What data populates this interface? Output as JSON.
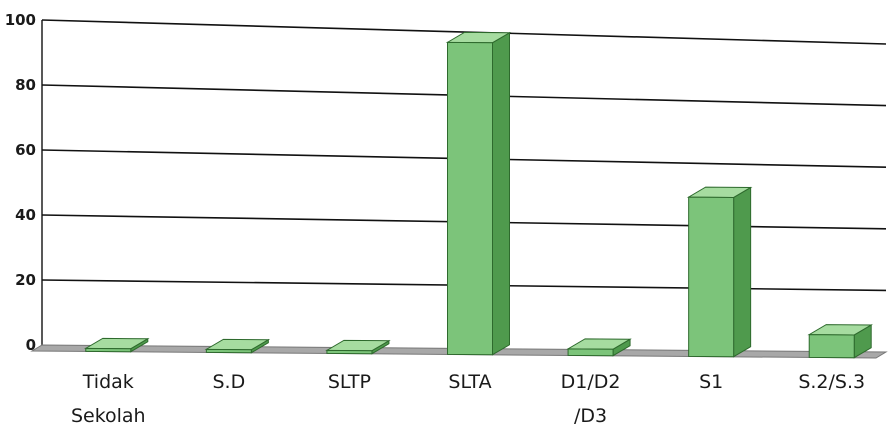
{
  "chart_data": {
    "type": "bar",
    "title": "",
    "xlabel": "",
    "ylabel": "",
    "ylim": [
      0,
      100
    ],
    "yticks": [
      "0",
      "20",
      "40",
      "60",
      "80",
      "100"
    ],
    "grid": true,
    "three_d": true,
    "categories": [
      [
        "Tidak",
        "Sekolah"
      ],
      [
        "S.D"
      ],
      [
        "SLTP"
      ],
      [
        "SLTA"
      ],
      [
        "D1/D2",
        "/D3"
      ],
      [
        "S1"
      ],
      [
        "S.2/S.3"
      ]
    ],
    "values": [
      0,
      0,
      0,
      96,
      2,
      49,
      7
    ],
    "colors": {
      "bar_front": "#7cc47a",
      "bar_side": "#4f9a4d",
      "bar_top": "#a6dca0",
      "bar_stroke": "#2e6a2d",
      "grid": "#111111",
      "floor": "#a8a8a8"
    }
  }
}
